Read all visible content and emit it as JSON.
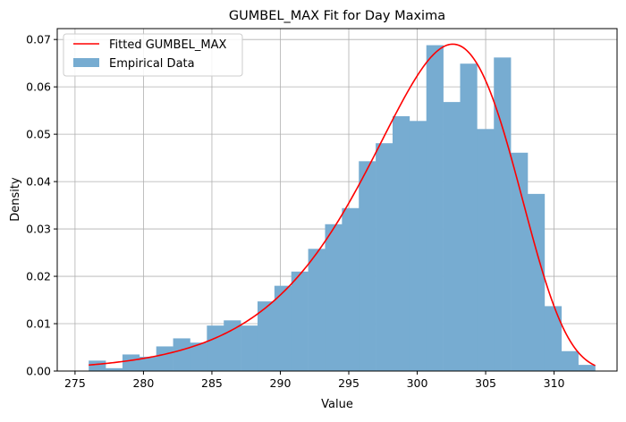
{
  "chart_data": {
    "type": "bar",
    "title": "GUMBEL_MAX Fit for Day Maxima",
    "xlabel": "Value",
    "ylabel": "Density",
    "xlim": [
      273.7,
      314.6
    ],
    "ylim": [
      0,
      0.0723
    ],
    "grid": true,
    "legend_position": "top-left",
    "xticks": [
      275,
      280,
      285,
      290,
      295,
      300,
      305,
      310
    ],
    "xtick_labels": [
      "275",
      "280",
      "285",
      "290",
      "295",
      "300",
      "305",
      "310"
    ],
    "yticks": [
      0,
      0.01,
      0.02,
      0.03,
      0.04,
      0.05,
      0.06,
      0.07
    ],
    "ytick_labels": [
      "0.00",
      "0.01",
      "0.02",
      "0.03",
      "0.04",
      "0.05",
      "0.06",
      "0.07"
    ],
    "histogram": {
      "name": "Empirical Data",
      "color": "#77acd1",
      "bin_start": 276.0,
      "bin_end": 313.0,
      "values": [
        0.0022,
        0.0006,
        0.0035,
        0.003,
        0.0052,
        0.0069,
        0.006,
        0.0096,
        0.0107,
        0.0096,
        0.0147,
        0.018,
        0.021,
        0.0258,
        0.031,
        0.0344,
        0.0443,
        0.0481,
        0.0538,
        0.0528,
        0.0688,
        0.0568,
        0.0649,
        0.0511,
        0.0662,
        0.0461,
        0.0374,
        0.0137,
        0.0042,
        0.0013
      ]
    },
    "fit": {
      "name": "Fitted GUMBEL_MAX",
      "color": "#ff0000",
      "mode": 302.6,
      "scale": 5.33,
      "x_range": [
        276.0,
        313.0
      ]
    }
  }
}
